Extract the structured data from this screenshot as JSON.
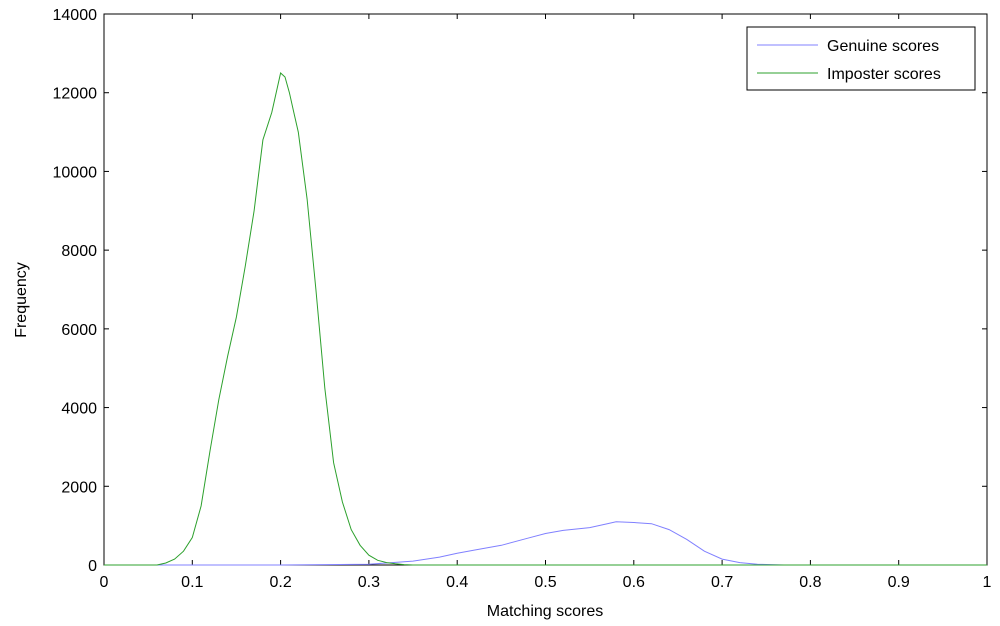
{
  "chart_data": {
    "type": "line",
    "title": "",
    "xlabel": "Matching scores",
    "ylabel": "Frequency",
    "xlim": [
      0,
      1
    ],
    "ylim": [
      0,
      14000
    ],
    "xticks": [
      0,
      0.1,
      0.2,
      0.3,
      0.4,
      0.5,
      0.6,
      0.7,
      0.8,
      0.9,
      1
    ],
    "yticks": [
      0,
      2000,
      4000,
      6000,
      8000,
      10000,
      12000,
      14000
    ],
    "xtick_labels": [
      "0",
      "0.1",
      "0.2",
      "0.3",
      "0.4",
      "0.5",
      "0.6",
      "0.7",
      "0.8",
      "0.9",
      "1"
    ],
    "ytick_labels": [
      "0",
      "2000",
      "4000",
      "6000",
      "8000",
      "10000",
      "12000",
      "14000"
    ],
    "grid": false,
    "legend": {
      "position": "top-right"
    },
    "series": [
      {
        "name": "Genuine scores",
        "color": "#8080ff",
        "x": [
          0,
          0.2,
          0.3,
          0.32,
          0.35,
          0.38,
          0.4,
          0.42,
          0.45,
          0.48,
          0.5,
          0.52,
          0.55,
          0.57,
          0.58,
          0.6,
          0.62,
          0.64,
          0.66,
          0.68,
          0.7,
          0.72,
          0.74,
          0.76,
          0.77,
          1
        ],
        "y": [
          0,
          0,
          20,
          50,
          100,
          200,
          300,
          380,
          500,
          680,
          800,
          880,
          950,
          1050,
          1100,
          1080,
          1050,
          900,
          650,
          350,
          150,
          60,
          20,
          5,
          0,
          0
        ]
      },
      {
        "name": "Imposter scores",
        "color": "#2ca02c",
        "x": [
          0,
          0.06,
          0.07,
          0.08,
          0.09,
          0.1,
          0.11,
          0.12,
          0.13,
          0.14,
          0.15,
          0.16,
          0.17,
          0.18,
          0.19,
          0.2,
          0.205,
          0.21,
          0.215,
          0.22,
          0.23,
          0.24,
          0.25,
          0.26,
          0.27,
          0.28,
          0.29,
          0.3,
          0.31,
          0.32,
          0.33,
          0.34,
          0.35,
          0.4,
          1
        ],
        "y": [
          0,
          0,
          50,
          150,
          350,
          700,
          1500,
          2900,
          4200,
          5300,
          6300,
          7600,
          9000,
          10800,
          11500,
          12500,
          12400,
          12000,
          11500,
          11000,
          9300,
          7000,
          4500,
          2600,
          1600,
          900,
          500,
          250,
          120,
          60,
          30,
          10,
          0,
          0,
          0
        ]
      }
    ]
  }
}
